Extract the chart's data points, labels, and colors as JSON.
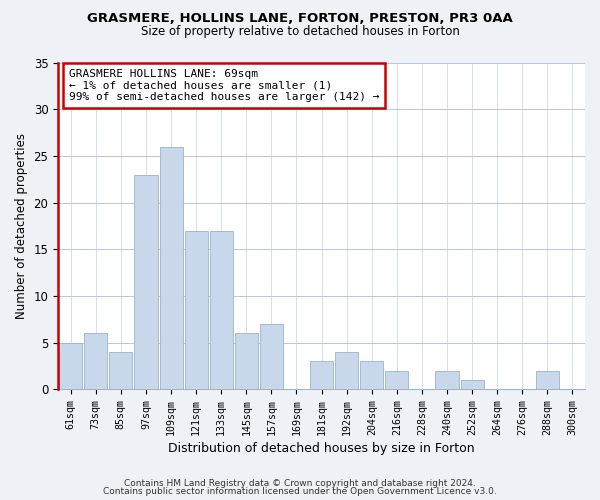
{
  "title": "GRASMERE, HOLLINS LANE, FORTON, PRESTON, PR3 0AA",
  "subtitle": "Size of property relative to detached houses in Forton",
  "xlabel": "Distribution of detached houses by size in Forton",
  "ylabel": "Number of detached properties",
  "bar_color": "#c8d8ea",
  "highlight_color": "#cc0000",
  "bar_edge_color": "#9ab4cc",
  "categories": [
    "61sqm",
    "73sqm",
    "85sqm",
    "97sqm",
    "109sqm",
    "121sqm",
    "133sqm",
    "145sqm",
    "157sqm",
    "169sqm",
    "181sqm",
    "192sqm",
    "204sqm",
    "216sqm",
    "228sqm",
    "240sqm",
    "252sqm",
    "264sqm",
    "276sqm",
    "288sqm",
    "300sqm"
  ],
  "values": [
    5,
    6,
    4,
    23,
    26,
    17,
    17,
    6,
    7,
    0,
    3,
    4,
    3,
    2,
    0,
    2,
    1,
    0,
    0,
    2,
    0
  ],
  "highlight_bin_index": 0,
  "annotation_line1": "GRASMERE HOLLINS LANE: 69sqm",
  "annotation_line2": "← 1% of detached houses are smaller (1)",
  "annotation_line3": "99% of semi-detached houses are larger (142) →",
  "ylim": [
    0,
    35
  ],
  "yticks": [
    0,
    5,
    10,
    15,
    20,
    25,
    30,
    35
  ],
  "footer1": "Contains HM Land Registry data © Crown copyright and database right 2024.",
  "footer2": "Contains public sector information licensed under the Open Government Licence v3.0.",
  "bg_color": "#eef2f7",
  "plot_bg_color": "#ffffff",
  "grid_color": "#b8c8d8"
}
